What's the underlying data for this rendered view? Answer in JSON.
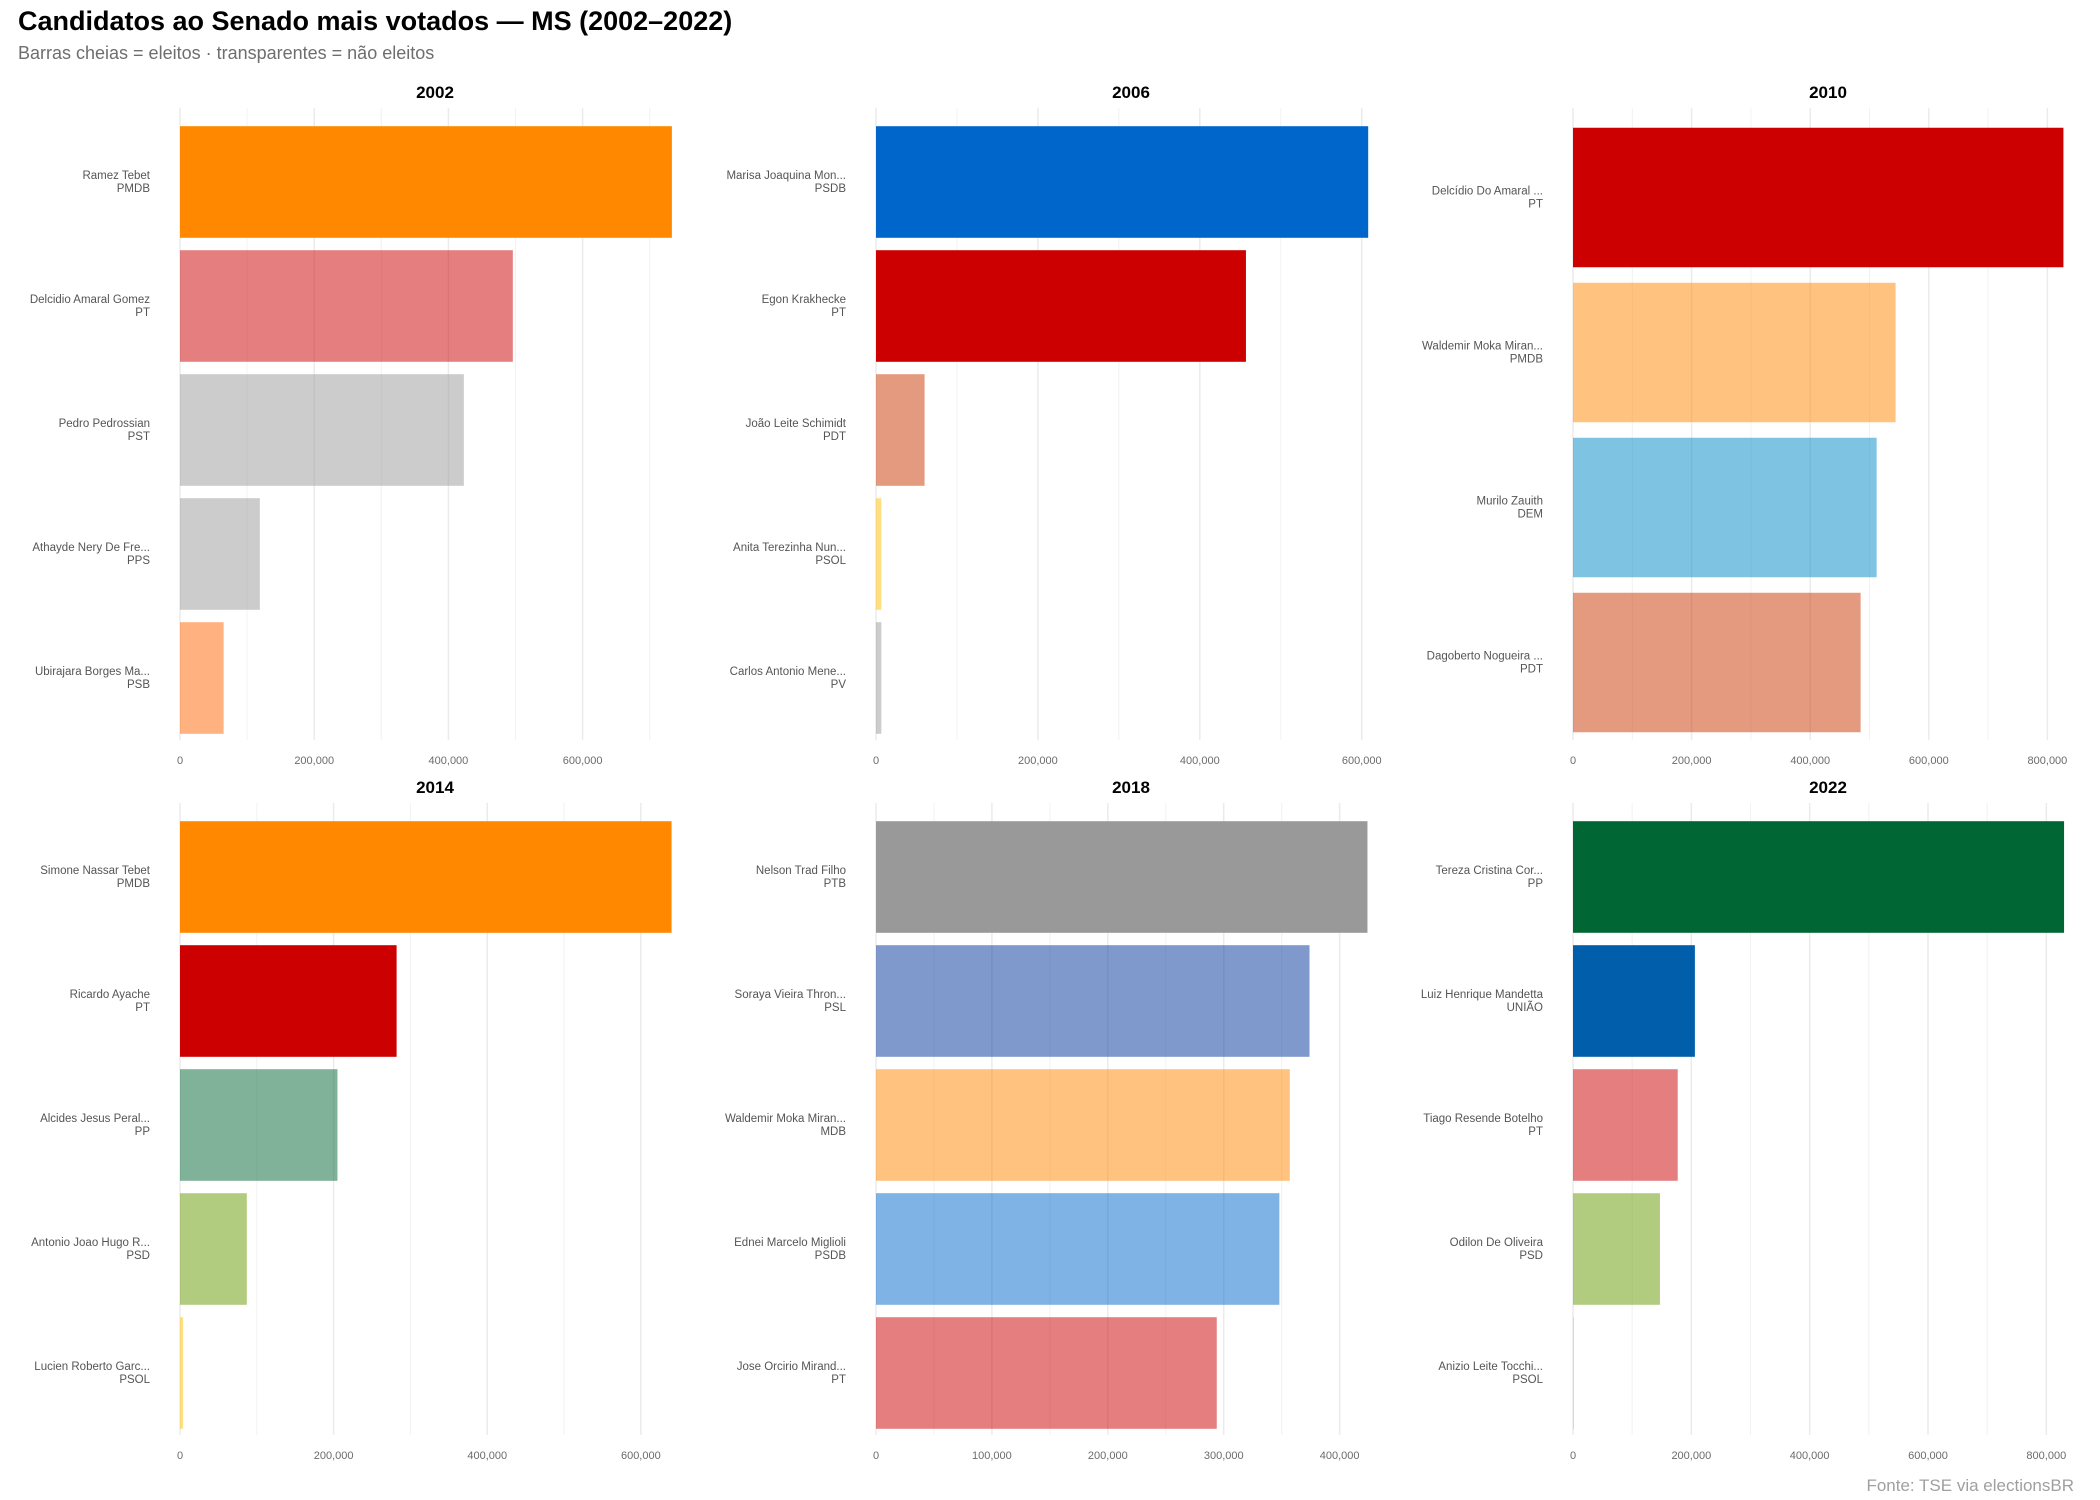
{
  "title": "Candidatos ao Senado mais votados — MS (2002–2022)",
  "subtitle": "Barras cheias = eleitos · transparentes = não eleitos",
  "caption": "Fonte: TSE via electionsBR",
  "chart_data": {
    "type": "bar",
    "orientation": "horizontal",
    "facets_layout": "2 rows x 3 columns, free x scales",
    "grid": true,
    "non_elected_opacity": 0.5,
    "panels": [
      {
        "title": "2002",
        "xlim": [
          0,
          760000
        ],
        "ticks": [
          0,
          200000,
          400000,
          600000
        ],
        "tick_labels": [
          "0",
          "200,000",
          "400,000",
          "600,000"
        ],
        "bars": [
          {
            "name": "Ramez Tebet",
            "party": "PMDB",
            "votes": 733000,
            "elected": true,
            "color": "#FF8800"
          },
          {
            "name": "Delcidio Amaral Gomez",
            "party": "PT",
            "votes": 496000,
            "elected": false,
            "color": "#CC0000"
          },
          {
            "name": "Pedro Pedrossian",
            "party": "PST",
            "votes": 423000,
            "elected": false,
            "color": "#999999"
          },
          {
            "name": "Athayde Nery De Fre...",
            "party": "PPS",
            "votes": 119000,
            "elected": false,
            "color": "#999999"
          },
          {
            "name": "Ubirajara Borges Ma...",
            "party": "PSB",
            "votes": 65000,
            "elected": false,
            "color": "#FF6600"
          }
        ]
      },
      {
        "title": "2006",
        "xlim": [
          0,
          630000
        ],
        "ticks": [
          0,
          200000,
          400000,
          600000
        ],
        "tick_labels": [
          "0",
          "200,000",
          "400,000",
          "600,000"
        ],
        "bars": [
          {
            "name": "Marisa Joaquina Mon...",
            "party": "PSDB",
            "votes": 608000,
            "elected": true,
            "color": "#0066CC"
          },
          {
            "name": "Egon Krakhecke",
            "party": "PT",
            "votes": 457000,
            "elected": true,
            "color": "#CC0000"
          },
          {
            "name": "João Leite Schimidt",
            "party": "PDT",
            "votes": 60000,
            "elected": false,
            "color": "#CA3500"
          },
          {
            "name": "Anita Terezinha Nun...",
            "party": "PSOL",
            "votes": 6600,
            "elected": false,
            "color": "#FFC000"
          },
          {
            "name": "Carlos Antonio Mene...",
            "party": "PV",
            "votes": 6600,
            "elected": false,
            "color": "#999999"
          }
        ]
      },
      {
        "title": "2010",
        "xlim": [
          0,
          860000
        ],
        "ticks": [
          0,
          200000,
          400000,
          600000,
          800000
        ],
        "tick_labels": [
          "0",
          "200,000",
          "400,000",
          "600,000",
          "800,000"
        ],
        "bars": [
          {
            "name": "Delcídio Do Amaral ...",
            "party": "PT",
            "votes": 827000,
            "elected": true,
            "color": "#CC0000"
          },
          {
            "name": "Waldemir Moka Miran...",
            "party": "PMDB",
            "votes": 544000,
            "elected": false,
            "color": "#FF8800"
          },
          {
            "name": "Murilo Zauith",
            "party": "DEM",
            "votes": 512000,
            "elected": false,
            "color": "#0087C7"
          },
          {
            "name": "Dagoberto Nogueira ...",
            "party": "PDT",
            "votes": 485000,
            "elected": false,
            "color": "#CA3500"
          }
        ]
      },
      {
        "title": "2014",
        "xlim": [
          0,
          664000
        ],
        "ticks": [
          0,
          200000,
          400000,
          600000
        ],
        "tick_labels": [
          "0",
          "200,000",
          "400,000",
          "600,000"
        ],
        "bars": [
          {
            "name": "Simone Nassar Tebet",
            "party": "PMDB",
            "votes": 640000,
            "elected": true,
            "color": "#FF8800"
          },
          {
            "name": "Ricardo Ayache",
            "party": "PT",
            "votes": 282000,
            "elected": true,
            "color": "#CC0000"
          },
          {
            "name": "Alcides Jesus Peral...",
            "party": "PP",
            "votes": 205000,
            "elected": false,
            "color": "#006633"
          },
          {
            "name": "Antonio Joao Hugo R...",
            "party": "PSD",
            "votes": 87000,
            "elected": false,
            "color": "#669900"
          },
          {
            "name": "Lucien Roberto Garc...",
            "party": "PSOL",
            "votes": 4000,
            "elected": false,
            "color": "#FFC000"
          }
        ]
      },
      {
        "title": "2018",
        "xlim": [
          0,
          440000
        ],
        "ticks": [
          0,
          100000,
          200000,
          300000,
          400000
        ],
        "tick_labels": [
          "0",
          "100,000",
          "200,000",
          "300,000",
          "400,000"
        ],
        "bars": [
          {
            "name": "Nelson Trad Filho",
            "party": "PTB",
            "votes": 424000,
            "elected": true,
            "color": "#999999"
          },
          {
            "name": "Soraya Vieira Thron...",
            "party": "PSL",
            "votes": 374000,
            "elected": false,
            "color": "#003399"
          },
          {
            "name": "Waldemir Moka Miran...",
            "party": "MDB",
            "votes": 357000,
            "elected": false,
            "color": "#FF8800"
          },
          {
            "name": "Ednei Marcelo Miglioli",
            "party": "PSDB",
            "votes": 348000,
            "elected": false,
            "color": "#0066CC"
          },
          {
            "name": "Jose Orcirio Mirand...",
            "party": "PT",
            "votes": 294000,
            "elected": false,
            "color": "#CC0000"
          }
        ]
      },
      {
        "title": "2022",
        "xlim": [
          0,
          862000
        ],
        "ticks": [
          0,
          200000,
          400000,
          600000,
          800000
        ],
        "tick_labels": [
          "0",
          "200,000",
          "400,000",
          "600,000",
          "800,000"
        ],
        "bars": [
          {
            "name": "Tereza Cristina Cor...",
            "party": "PP",
            "votes": 830000,
            "elected": true,
            "color": "#006633"
          },
          {
            "name": "Luiz Henrique Mandetta",
            "party": "UNIÃO",
            "votes": 206000,
            "elected": true,
            "color": "#005EAA"
          },
          {
            "name": "Tiago Resende Botelho",
            "party": "PT",
            "votes": 177000,
            "elected": false,
            "color": "#CC0000"
          },
          {
            "name": "Odilon De Oliveira",
            "party": "PSD",
            "votes": 147000,
            "elected": false,
            "color": "#669900"
          },
          {
            "name": "Anizio Leite Tocchi...",
            "party": "PSOL",
            "votes": 1500,
            "elected": false,
            "color": "#FFC000"
          }
        ]
      }
    ]
  }
}
